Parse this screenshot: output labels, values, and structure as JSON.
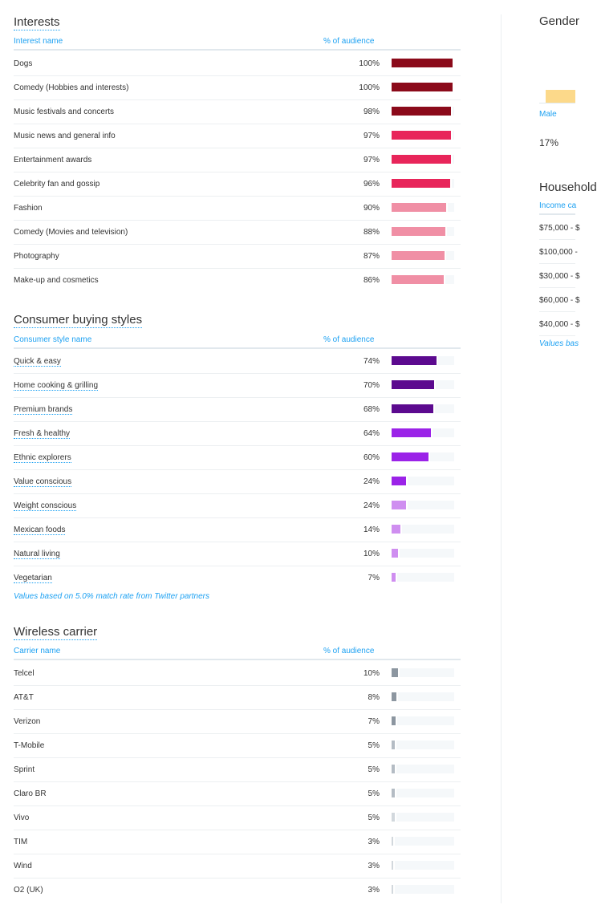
{
  "interests": {
    "title": "Interests",
    "col_name": "Interest name",
    "col_pct": "% of audience",
    "rows": [
      {
        "name": "Dogs",
        "pct": "100%",
        "value": 100,
        "color": "#8b0a1a"
      },
      {
        "name": "Comedy (Hobbies and interests)",
        "pct": "100%",
        "value": 100,
        "color": "#8b0a1a"
      },
      {
        "name": "Music festivals and concerts",
        "pct": "98%",
        "value": 98,
        "color": "#8b0a1a"
      },
      {
        "name": "Music news and general info",
        "pct": "97%",
        "value": 97,
        "color": "#e8255a"
      },
      {
        "name": "Entertainment awards",
        "pct": "97%",
        "value": 97,
        "color": "#e8255a"
      },
      {
        "name": "Celebrity fan and gossip",
        "pct": "96%",
        "value": 96,
        "color": "#e8255a"
      },
      {
        "name": "Fashion",
        "pct": "90%",
        "value": 90,
        "color": "#f08fa5"
      },
      {
        "name": "Comedy (Movies and television)",
        "pct": "88%",
        "value": 88,
        "color": "#f08fa5"
      },
      {
        "name": "Photography",
        "pct": "87%",
        "value": 87,
        "color": "#f08fa5"
      },
      {
        "name": "Make-up and cosmetics",
        "pct": "86%",
        "value": 86,
        "color": "#f08fa5"
      }
    ]
  },
  "buying": {
    "title": "Consumer buying styles",
    "col_name": "Consumer style name",
    "col_pct": "% of audience",
    "rows": [
      {
        "name": "Quick & easy",
        "pct": "74%",
        "value": 74,
        "color": "#5c0a8f"
      },
      {
        "name": "Home cooking & grilling",
        "pct": "70%",
        "value": 70,
        "color": "#5c0a8f"
      },
      {
        "name": "Premium brands",
        "pct": "68%",
        "value": 68,
        "color": "#5c0a8f"
      },
      {
        "name": "Fresh & healthy",
        "pct": "64%",
        "value": 64,
        "color": "#9b23e8"
      },
      {
        "name": "Ethnic explorers",
        "pct": "60%",
        "value": 60,
        "color": "#9b23e8"
      },
      {
        "name": "Value conscious",
        "pct": "24%",
        "value": 24,
        "color": "#9b23e8"
      },
      {
        "name": "Weight conscious",
        "pct": "24%",
        "value": 24,
        "color": "#cf8ef0"
      },
      {
        "name": "Mexican foods",
        "pct": "14%",
        "value": 14,
        "color": "#cf8ef0"
      },
      {
        "name": "Natural living",
        "pct": "10%",
        "value": 10,
        "color": "#cf8ef0"
      },
      {
        "name": "Vegetarian",
        "pct": "7%",
        "value": 7,
        "color": "#cf8ef0"
      }
    ],
    "footnote": "Values based on 5.0% match rate from Twitter partners"
  },
  "wireless": {
    "title": "Wireless carrier",
    "col_name": "Carrier name",
    "col_pct": "% of audience",
    "rows": [
      {
        "name": "Telcel",
        "pct": "10%",
        "value": 10,
        "color": "#8c96a0"
      },
      {
        "name": "AT&T",
        "pct": "8%",
        "value": 8,
        "color": "#8c96a0"
      },
      {
        "name": "Verizon",
        "pct": "7%",
        "value": 7,
        "color": "#8c96a0"
      },
      {
        "name": "T-Mobile",
        "pct": "5%",
        "value": 5,
        "color": "#b4bcc4"
      },
      {
        "name": "Sprint",
        "pct": "5%",
        "value": 5,
        "color": "#b4bcc4"
      },
      {
        "name": "Claro BR",
        "pct": "5%",
        "value": 5,
        "color": "#b4bcc4"
      },
      {
        "name": "Vivo",
        "pct": "5%",
        "value": 5,
        "color": "#d2d8dd"
      },
      {
        "name": "TIM",
        "pct": "3%",
        "value": 3,
        "color": "#d2d8dd"
      },
      {
        "name": "Wind",
        "pct": "3%",
        "value": 3,
        "color": "#d2d8dd"
      },
      {
        "name": "O2 (UK)",
        "pct": "3%",
        "value": 3,
        "color": "#d2d8dd"
      }
    ]
  },
  "gender": {
    "title": "Gender",
    "male_label": "Male",
    "male_pct": "17%",
    "male_color": "#fcd98a"
  },
  "household": {
    "title": "Household",
    "col_name": "Income ca",
    "rows": [
      "$75,000 - $",
      "$100,000 -",
      "$30,000 - $",
      "$60,000 - $",
      "$40,000 - $"
    ],
    "footnote": "Values bas"
  }
}
